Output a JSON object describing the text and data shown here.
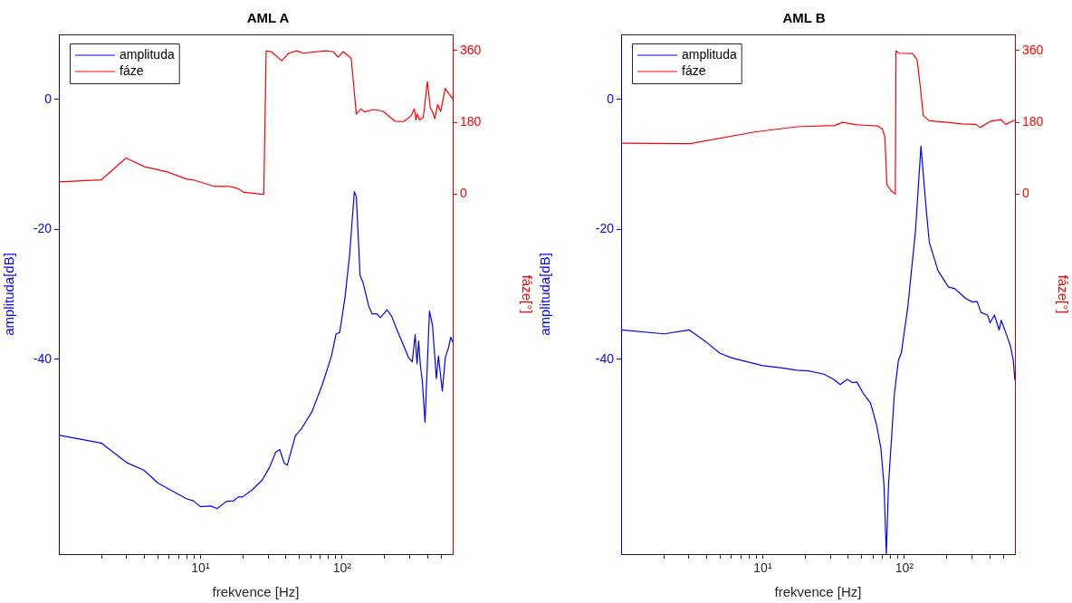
{
  "chart_data": [
    {
      "type": "line",
      "title": "AML A",
      "xlabel": "frekvence [Hz]",
      "ylabel": "amplituda[dB]",
      "y2label": "fáze[°]",
      "log": "x",
      "legend": "top left",
      "xlim": [
        1,
        604
      ],
      "xticks": [
        {
          "value": 2,
          "label": null
        },
        {
          "value": 3,
          "label": null
        },
        {
          "value": 4,
          "label": null
        },
        {
          "value": 5,
          "label": null
        },
        {
          "value": 6,
          "label": null
        },
        {
          "value": 7,
          "label": null
        },
        {
          "value": 8,
          "label": null
        },
        {
          "value": 9,
          "label": null
        },
        {
          "value": 10,
          "label": "10¹"
        },
        {
          "value": 20,
          "label": null
        },
        {
          "value": 30,
          "label": null
        },
        {
          "value": 40,
          "label": null
        },
        {
          "value": 50,
          "label": null
        },
        {
          "value": 60,
          "label": null
        },
        {
          "value": 70,
          "label": null
        },
        {
          "value": 80,
          "label": null
        },
        {
          "value": 90,
          "label": null
        },
        {
          "value": 100,
          "label": "10²"
        },
        {
          "value": 200,
          "label": null
        },
        {
          "value": 300,
          "label": null
        },
        {
          "value": 400,
          "label": null
        },
        {
          "value": 500,
          "label": null
        }
      ],
      "ylim": [
        -70,
        10
      ],
      "yticks": [
        -40,
        -20,
        0
      ],
      "y2lim": [
        -900,
        400
      ],
      "y2ticks": [
        0,
        180,
        360
      ],
      "series": [
        {
          "name": "amplituda",
          "color": "#0000ff",
          "x": [
            1,
            1.99,
            3.01,
            4,
            5.03,
            8,
            8.93,
            10,
            11.9,
            13.1,
            15.2,
            17.1,
            18.5,
            19.8,
            23.5,
            27.3,
            30.8,
            34,
            36.3,
            39,
            41,
            46.8,
            51.6,
            61.2,
            72.8,
            84.2,
            90.6,
            96.1,
            105,
            113,
            122,
            126,
            134,
            141,
            155,
            163,
            176,
            186,
            208,
            224,
            242,
            260,
            294,
            313,
            328,
            338,
            347,
            357,
            369,
            385,
            414,
            435,
            463,
            479,
            510,
            536,
            563,
            585,
            604
          ],
          "values": [
            -51.7,
            -52.9,
            -55.9,
            -57.1,
            -59.1,
            -61.5,
            -61.8,
            -62.7,
            -62.6,
            -63,
            -61.9,
            -61.8,
            -61.2,
            -61.2,
            -60,
            -58.6,
            -56.6,
            -54.3,
            -53.9,
            -56,
            -56.3,
            -51.8,
            -50.7,
            -48.1,
            -43.8,
            -39.5,
            -36.1,
            -35.9,
            -30.4,
            -23.9,
            -14.2,
            -15,
            -27.1,
            -28.3,
            -32,
            -33,
            -33,
            -33.6,
            -32.4,
            -33.4,
            -35.3,
            -36.9,
            -39.7,
            -40.4,
            -36.2,
            -40.7,
            -37.2,
            -40.9,
            -43.5,
            -49.7,
            -32.6,
            -34.8,
            -43,
            -39.5,
            -44.9,
            -39.7,
            -38.3,
            -36.6,
            -37.4
          ]
        },
        {
          "name": "fáze",
          "color": "#ff0000",
          "axis": "y2",
          "x": [
            1,
            1.99,
            2.98,
            4.03,
            5.83,
            8,
            8.93,
            12.5,
            15.9,
            18.5,
            20.3,
            28,
            29.1,
            31.6,
            37.5,
            42,
            47.9,
            52.8,
            76.4,
            86.3,
            93.8,
            102,
            116,
            126,
            136,
            144,
            167,
            194,
            236,
            273,
            308,
            324,
            332,
            340,
            352,
            375,
            400,
            420,
            435,
            451,
            473,
            497,
            535,
            570,
            604
          ],
          "values": [
            31,
            36,
            91,
            69,
            56,
            38,
            36,
            20,
            20,
            14,
            5,
            0,
            359,
            357,
            334,
            353,
            359,
            353,
            359,
            357,
            343,
            357,
            340,
            201,
            214,
            206,
            212,
            208,
            183,
            182,
            197,
            214,
            186,
            201,
            186,
            193,
            282,
            216,
            207,
            189,
            225,
            207,
            265,
            251,
            239
          ]
        }
      ]
    },
    {
      "type": "line",
      "title": "AML B",
      "xlabel": "frekvence [Hz]",
      "ylabel": "amplituda[dB]",
      "y2label": "fáze[°]",
      "log": "x",
      "legend": "top left",
      "xlim": [
        1,
        604
      ],
      "xticks": [
        {
          "value": 2,
          "label": null
        },
        {
          "value": 3,
          "label": null
        },
        {
          "value": 4,
          "label": null
        },
        {
          "value": 5,
          "label": null
        },
        {
          "value": 6,
          "label": null
        },
        {
          "value": 7,
          "label": null
        },
        {
          "value": 8,
          "label": null
        },
        {
          "value": 9,
          "label": null
        },
        {
          "value": 10,
          "label": "10¹"
        },
        {
          "value": 20,
          "label": null
        },
        {
          "value": 30,
          "label": null
        },
        {
          "value": 40,
          "label": null
        },
        {
          "value": 50,
          "label": null
        },
        {
          "value": 60,
          "label": null
        },
        {
          "value": 70,
          "label": null
        },
        {
          "value": 80,
          "label": null
        },
        {
          "value": 90,
          "label": null
        },
        {
          "value": 100,
          "label": "10²"
        },
        {
          "value": 200,
          "label": null
        },
        {
          "value": 300,
          "label": null
        },
        {
          "value": 400,
          "label": null
        },
        {
          "value": 500,
          "label": null
        }
      ],
      "ylim": [
        -70,
        10
      ],
      "yticks": [
        -40,
        -20,
        0
      ],
      "y2lim": [
        -900,
        400
      ],
      "y2ticks": [
        0,
        180,
        360
      ],
      "series": [
        {
          "name": "amplituda",
          "color": "#0000ff",
          "x": [
            1,
            2.02,
            3.03,
            4.01,
            5,
            6.07,
            10,
            13.3,
            17.4,
            21.1,
            27,
            31.2,
            35.3,
            39.5,
            43,
            46.2,
            51.4,
            57.6,
            63.5,
            68.3,
            71.8,
            74.6,
            77.3,
            81.1,
            85.1,
            90.8,
            95.3,
            106,
            120,
            131,
            142,
            150,
            173,
            205,
            226,
            269,
            303,
            326,
            348,
            387,
            403,
            433,
            467,
            483,
            532,
            560,
            588,
            603
          ],
          "values": [
            -35.5,
            -36.1,
            -35.5,
            -37.4,
            -39.1,
            -39.8,
            -41,
            -41.3,
            -41.7,
            -41.8,
            -42.3,
            -43,
            -43.9,
            -43.1,
            -43.6,
            -43.5,
            -45.3,
            -46.7,
            -50,
            -53.7,
            -59.3,
            -70,
            -59.3,
            -52.3,
            -45.3,
            -40.2,
            -39,
            -31.8,
            -20.1,
            -7.2,
            -16.4,
            -22,
            -26.4,
            -28.9,
            -29.1,
            -30.6,
            -31.2,
            -31.1,
            -32.8,
            -33.2,
            -34.4,
            -33.2,
            -35.5,
            -34,
            -36.5,
            -37.9,
            -40.2,
            -43.2
          ]
        },
        {
          "name": "fáze",
          "color": "#ff0000",
          "axis": "y2",
          "x": [
            1,
            3.07,
            8.8,
            17.4,
            32.1,
            36.6,
            46.2,
            52.2,
            65,
            70,
            72.8,
            75.3,
            81.1,
            86.3,
            87.3,
            91.6,
            114,
            123,
            130,
            136,
            150,
            200,
            256,
            319,
            343,
            407,
            479,
            520,
            603
          ],
          "values": [
            128,
            127,
            156,
            169,
            172,
            180,
            174,
            173,
            171,
            163,
            144,
            24,
            8,
            1,
            359,
            353,
            352,
            337,
            265,
            197,
            184,
            180,
            176,
            175,
            167,
            183,
            187,
            175,
            186
          ]
        }
      ]
    }
  ]
}
